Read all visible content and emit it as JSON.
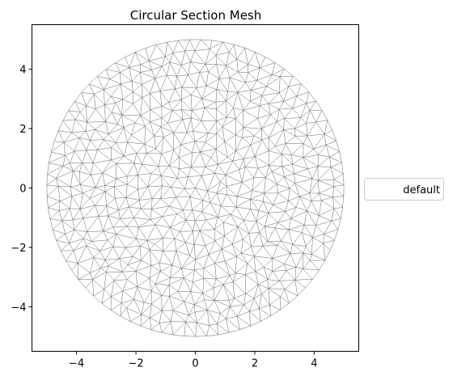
{
  "chart_data": {
    "type": "mesh",
    "title": "Circular Section Mesh",
    "xlabel": "",
    "ylabel": "",
    "xlim": [
      -5.5,
      5.5
    ],
    "ylim": [
      -5.5,
      5.5
    ],
    "xticks": [
      -4,
      -2,
      0,
      2,
      4
    ],
    "yticks": [
      -4,
      -2,
      0,
      2,
      4
    ],
    "xtick_labels": [
      "−4",
      "−2",
      "0",
      "2",
      "4"
    ],
    "ytick_labels": [
      "−4",
      "−2",
      "0",
      "2",
      "4"
    ],
    "grid": false,
    "circle": {
      "center": [
        0,
        0
      ],
      "radius": 5
    },
    "mesh": {
      "element": "triangle",
      "edge_color": "#666666",
      "face_color": "none"
    },
    "legend": {
      "placement": "center-right-outside",
      "entries": [
        "default"
      ]
    }
  }
}
